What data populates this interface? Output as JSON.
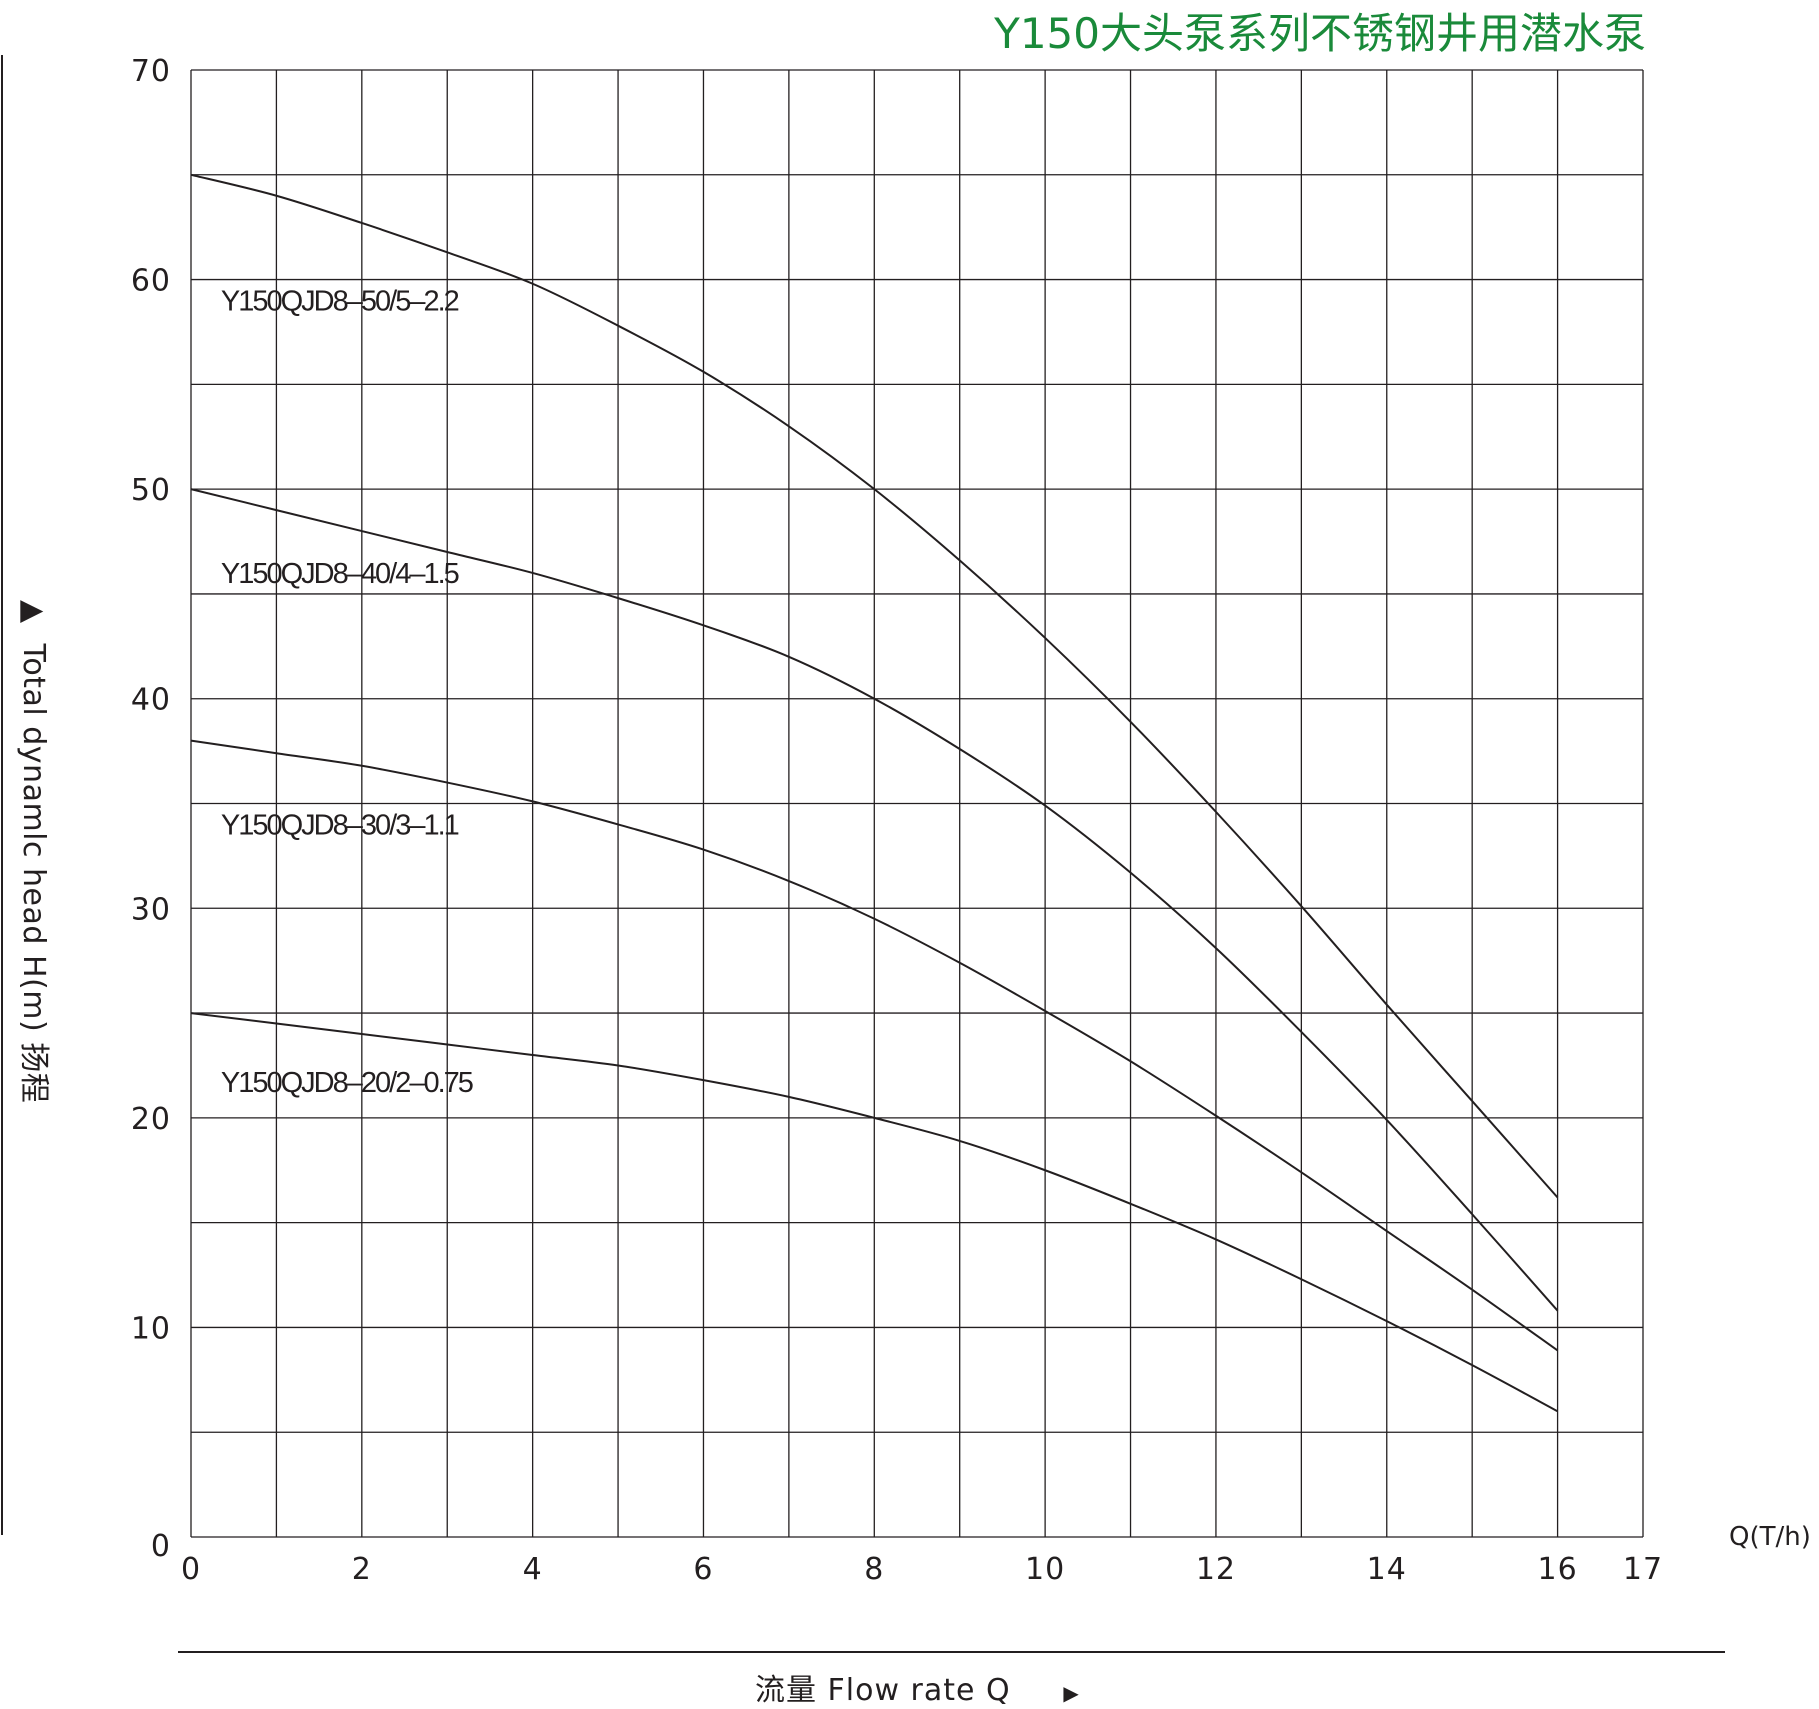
{
  "chart_data": {
    "type": "line",
    "title": "Y150大头泵系列不锈钢井用潜水泵",
    "xlabel": "流量  Flow rate Q",
    "ylabel": "Total dynamlc head H(m) 扬程",
    "x_unit": "Q(T/h)",
    "xlim": [
      0,
      17
    ],
    "ylim": [
      0,
      70
    ],
    "x_ticks": [
      0,
      2,
      4,
      6,
      8,
      10,
      12,
      14,
      16,
      17
    ],
    "y_ticks": [
      0,
      10,
      20,
      30,
      40,
      50,
      60,
      70
    ],
    "grid": true,
    "series": [
      {
        "name": "Y150QJD8–50/5–2.2",
        "x": [
          0,
          1,
          2,
          3,
          4,
          5,
          6,
          7,
          8,
          9,
          10,
          11,
          12,
          13,
          14,
          15,
          16
        ],
        "y": [
          65,
          64,
          62.7,
          61.3,
          59.8,
          57.8,
          55.6,
          53,
          50,
          46.6,
          42.9,
          38.9,
          34.6,
          30.1,
          25.4,
          20.8,
          16.2
        ]
      },
      {
        "name": "Y150QJD8–40/4–1.5",
        "x": [
          0,
          1,
          2,
          3,
          4,
          5,
          6,
          7,
          8,
          9,
          10,
          11,
          12,
          13,
          14,
          15,
          16
        ],
        "y": [
          50,
          49,
          48,
          47,
          46,
          44.8,
          43.5,
          42,
          40,
          37.6,
          34.9,
          31.7,
          28.1,
          24.1,
          19.9,
          15.4,
          10.8
        ]
      },
      {
        "name": "Y150QJD8–30/3–1.1",
        "x": [
          0,
          1,
          2,
          3,
          4,
          5,
          6,
          7,
          8,
          9,
          10,
          11,
          12,
          13,
          14,
          15,
          16
        ],
        "y": [
          38,
          37.4,
          36.8,
          36,
          35.1,
          34,
          32.8,
          31.3,
          29.5,
          27.4,
          25.1,
          22.7,
          20.1,
          17.4,
          14.6,
          11.8,
          8.9
        ]
      },
      {
        "name": "Y150QJD8–20/2–0.75",
        "x": [
          0,
          1,
          2,
          3,
          4,
          5,
          6,
          7,
          8,
          9,
          10,
          11,
          12,
          13,
          14,
          15,
          16
        ],
        "y": [
          25,
          24.5,
          24,
          23.5,
          23,
          22.5,
          21.8,
          21,
          20,
          18.9,
          17.5,
          15.9,
          14.2,
          12.3,
          10.3,
          8.2,
          6
        ]
      }
    ],
    "series_label_anchor_y": [
      59,
      46,
      34,
      21.7
    ]
  },
  "colors": {
    "title": "#1a8a3a",
    "line": "#231f20",
    "grid": "#231f20",
    "background": "#ffffff"
  }
}
